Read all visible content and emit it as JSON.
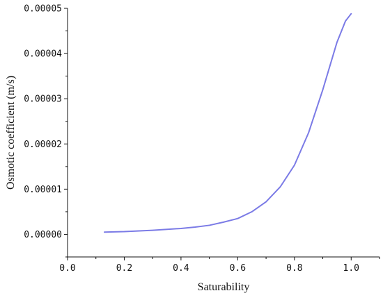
{
  "chart_data": {
    "type": "line",
    "title": "",
    "xlabel": "Saturability",
    "ylabel": "Osmotic coefficient (m/s)",
    "xlim": [
      0.0,
      1.1
    ],
    "ylim": [
      -5e-06,
      5e-05
    ],
    "x_ticks": [
      0.0,
      0.2,
      0.4,
      0.6,
      0.8,
      1.0
    ],
    "x_tick_labels": [
      "0.0",
      "0.2",
      "0.4",
      "0.6",
      "0.8",
      "1.0"
    ],
    "y_ticks": [
      0.0,
      1e-05,
      2e-05,
      3e-05,
      4e-05,
      5e-05
    ],
    "y_tick_labels": [
      "0.00000",
      "0.00001",
      "0.00002",
      "0.00003",
      "0.00004",
      "0.00005"
    ],
    "grid": false,
    "legend": "none",
    "series": [
      {
        "color": "#7b7be6",
        "x": [
          0.13,
          0.2,
          0.3,
          0.4,
          0.45,
          0.5,
          0.55,
          0.6,
          0.65,
          0.7,
          0.75,
          0.8,
          0.85,
          0.9,
          0.95,
          0.98,
          1.0
        ],
        "y": [
          5e-07,
          6e-07,
          9e-07,
          1.3e-06,
          1.6e-06,
          2e-06,
          2.7e-06,
          3.5e-06,
          5e-06,
          7.2e-06,
          1.05e-05,
          1.53e-05,
          2.25e-05,
          3.2e-05,
          4.25e-05,
          4.72e-05,
          4.88e-05
        ]
      }
    ]
  }
}
